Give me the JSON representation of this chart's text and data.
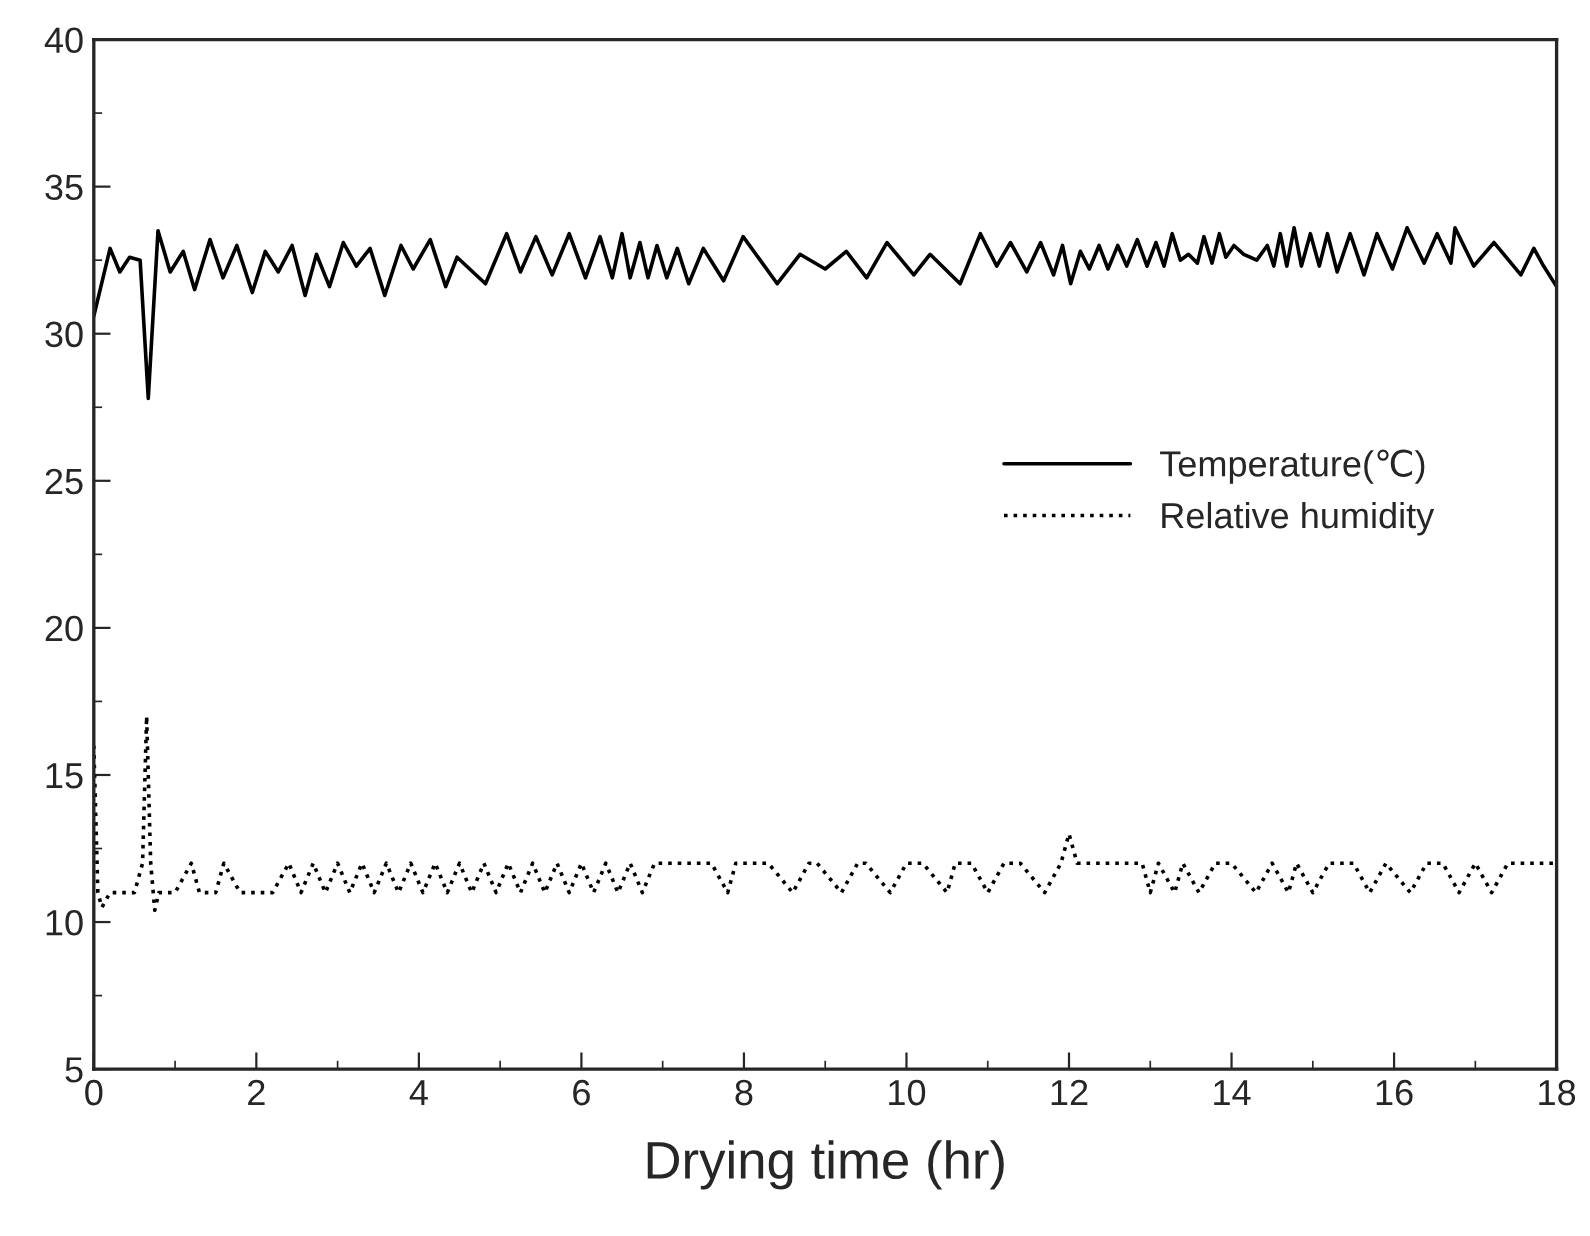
{
  "chart_data": {
    "type": "line",
    "xlabel": "Drying time (hr)",
    "xlim": [
      0,
      18
    ],
    "ylim": [
      5,
      40
    ],
    "xticks": [
      0,
      2,
      4,
      6,
      8,
      10,
      12,
      14,
      16,
      18
    ],
    "yticks": [
      5,
      10,
      15,
      20,
      25,
      30,
      35,
      40
    ],
    "grid": false,
    "legend": "right",
    "marker": "none",
    "series": [
      {
        "name": "Temperature(℃)",
        "color": "#000000",
        "line_style": "solid",
        "x": [
          0,
          0.2,
          0.32,
          0.44,
          0.57,
          0.67,
          0.79,
          0.94,
          1.1,
          1.24,
          1.43,
          1.59,
          1.76,
          1.95,
          2.11,
          2.27,
          2.44,
          2.6,
          2.74,
          2.9,
          3.07,
          3.23,
          3.4,
          3.58,
          3.78,
          3.93,
          4.14,
          4.33,
          4.47,
          4.82,
          5.08,
          5.25,
          5.44,
          5.64,
          5.85,
          6.05,
          6.23,
          6.38,
          6.5,
          6.6,
          6.72,
          6.82,
          6.93,
          7.05,
          7.18,
          7.32,
          7.5,
          7.75,
          7.99,
          8.41,
          8.69,
          9.0,
          9.26,
          9.51,
          9.76,
          10.09,
          10.29,
          10.66,
          10.91,
          11.11,
          11.28,
          11.48,
          11.65,
          11.81,
          11.92,
          12.02,
          12.14,
          12.25,
          12.37,
          12.48,
          12.6,
          12.71,
          12.84,
          12.96,
          13.07,
          13.17,
          13.27,
          13.37,
          13.47,
          13.58,
          13.66,
          13.76,
          13.85,
          13.93,
          14.03,
          14.15,
          14.31,
          14.44,
          14.52,
          14.6,
          14.68,
          14.77,
          14.86,
          14.97,
          15.08,
          15.18,
          15.3,
          15.46,
          15.63,
          15.79,
          15.98,
          16.16,
          16.37,
          16.53,
          16.7,
          16.75,
          16.98,
          17.23,
          17.56,
          17.72,
          17.84,
          18
        ],
        "values": [
          30.6,
          32.9,
          32.1,
          32.6,
          32.5,
          27.8,
          33.5,
          32.1,
          32.8,
          31.5,
          33.2,
          31.9,
          33.0,
          31.4,
          32.8,
          32.1,
          33.0,
          31.3,
          32.7,
          31.6,
          33.1,
          32.3,
          32.9,
          31.3,
          33.0,
          32.2,
          33.2,
          31.6,
          32.6,
          31.7,
          33.4,
          32.1,
          33.3,
          32.0,
          33.4,
          31.9,
          33.3,
          31.9,
          33.4,
          31.9,
          33.1,
          31.9,
          33.0,
          31.9,
          32.9,
          31.7,
          32.9,
          31.8,
          33.3,
          31.7,
          32.7,
          32.2,
          32.8,
          31.9,
          33.1,
          32.0,
          32.7,
          31.7,
          33.4,
          32.3,
          33.1,
          32.1,
          33.1,
          32.0,
          33.0,
          31.7,
          32.8,
          32.2,
          33.0,
          32.2,
          33.0,
          32.3,
          33.2,
          32.3,
          33.1,
          32.3,
          33.4,
          32.5,
          32.7,
          32.4,
          33.3,
          32.4,
          33.4,
          32.6,
          33.0,
          32.7,
          32.5,
          33.0,
          32.3,
          33.4,
          32.3,
          33.6,
          32.3,
          33.4,
          32.3,
          33.4,
          32.1,
          33.4,
          32.0,
          33.4,
          32.2,
          33.6,
          32.4,
          33.4,
          32.4,
          33.6,
          32.3,
          33.1,
          32.0,
          32.9,
          32.3,
          31.6
        ]
      },
      {
        "name": "Relative humidity",
        "color": "#000000",
        "line_style": "dotted",
        "x": [
          0,
          0.05,
          0.1,
          0.2,
          0.5,
          0.6,
          0.65,
          0.7,
          0.75,
          0.8,
          1.0,
          1.2,
          1.3,
          1.5,
          1.6,
          1.8,
          2.0,
          2.2,
          2.4,
          2.55,
          2.7,
          2.85,
          3.0,
          3.15,
          3.3,
          3.45,
          3.6,
          3.75,
          3.9,
          4.05,
          4.2,
          4.35,
          4.5,
          4.65,
          4.8,
          4.95,
          5.1,
          5.25,
          5.4,
          5.55,
          5.7,
          5.85,
          6.0,
          6.15,
          6.3,
          6.45,
          6.6,
          6.75,
          6.9,
          7.05,
          7.2,
          7.4,
          7.6,
          7.8,
          7.9,
          8.0,
          8.3,
          8.6,
          8.8,
          8.9,
          9.2,
          9.4,
          9.5,
          9.8,
          10.0,
          10.2,
          10.5,
          10.6,
          10.8,
          11.0,
          11.2,
          11.4,
          11.7,
          11.9,
          12.0,
          12.1,
          12.3,
          12.6,
          12.9,
          13.0,
          13.1,
          13.3,
          13.4,
          13.6,
          13.8,
          14.0,
          14.3,
          14.5,
          14.7,
          14.8,
          15.0,
          15.2,
          15.5,
          15.7,
          15.9,
          16.2,
          16.4,
          16.6,
          16.8,
          17.0,
          17.2,
          17.4,
          17.6,
          17.8,
          18
        ],
        "values": [
          16,
          11,
          10.5,
          11,
          11,
          12,
          17,
          12,
          10.4,
          11,
          11,
          12,
          11,
          11,
          12,
          11,
          11,
          11,
          12,
          11,
          12,
          11,
          12,
          11,
          12,
          11,
          12,
          11,
          12,
          11,
          12,
          11,
          12,
          11,
          12,
          11,
          12,
          11,
          12,
          11,
          12,
          11,
          12,
          11,
          12,
          11,
          12,
          11,
          12,
          12,
          12,
          12,
          12,
          11,
          12,
          12,
          12,
          11,
          12,
          12,
          11,
          12,
          12,
          11,
          12,
          12,
          11,
          12,
          12,
          11,
          12,
          12,
          11,
          12,
          13,
          12,
          12,
          12,
          12,
          11,
          12,
          11,
          12,
          11,
          12,
          12,
          11,
          12,
          11,
          12,
          11,
          12,
          12,
          11,
          12,
          11,
          12,
          12,
          11,
          12,
          11,
          12,
          12,
          12,
          12
        ]
      }
    ]
  }
}
